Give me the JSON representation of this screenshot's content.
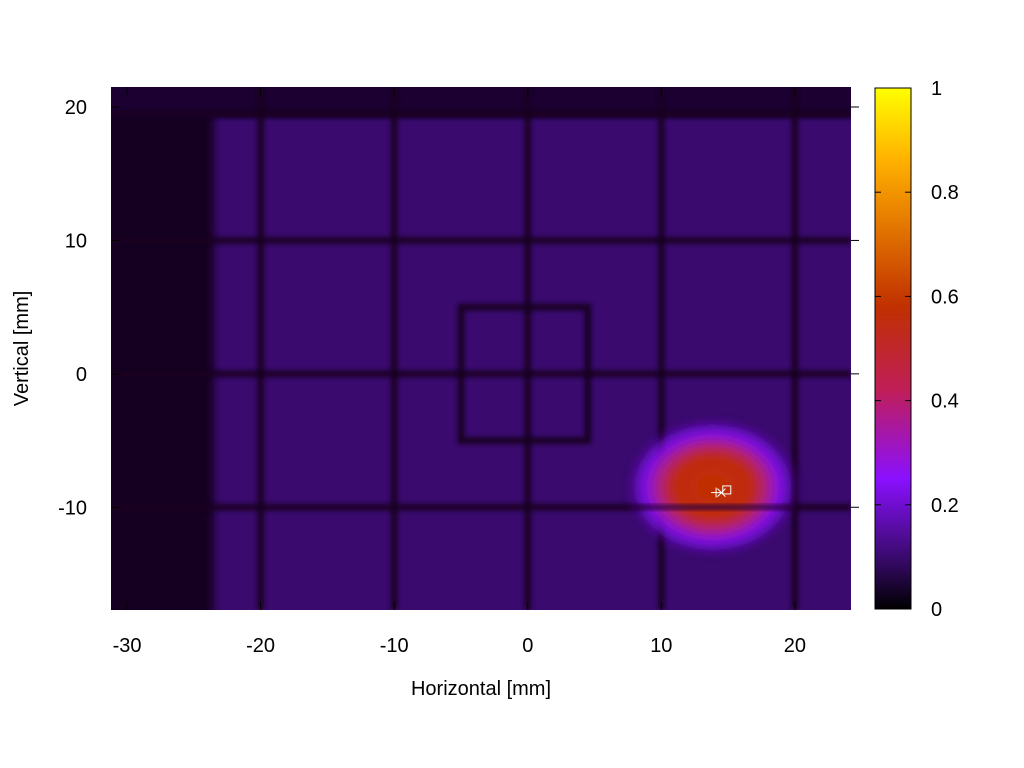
{
  "chart_data": {
    "type": "heatmap",
    "title": "",
    "xlabel": "Horizontal [mm]",
    "ylabel": "Vertical [mm]",
    "xlim": [
      -31.2,
      24.2
    ],
    "ylim": [
      -17.7,
      21.5
    ],
    "x_ticks": [
      -30,
      -20,
      -10,
      0,
      10,
      20
    ],
    "y_ticks": [
      -10,
      0,
      10,
      20
    ],
    "colorbar": {
      "range": [
        0,
        1
      ],
      "ticks": [
        0,
        0.2,
        0.4,
        0.6,
        0.8,
        1
      ],
      "tick_labels": [
        "0",
        "0.2",
        "0.4",
        "0.6",
        "0.8",
        "1"
      ],
      "palette": [
        "#000000",
        "#3a0a6e",
        "#8a10ff",
        "#c01e58",
        "#c03000",
        "#e07000",
        "#ffb000",
        "#ffff00"
      ]
    },
    "background_level": 0.08,
    "grid_lines": {
      "vertical_x": [
        -20,
        -10,
        0,
        10,
        20
      ],
      "horizontal_y": [
        -10,
        0,
        10,
        19.5
      ]
    },
    "inner_square": {
      "x_range": [
        -5,
        4.5
      ],
      "y_range": [
        -5,
        5
      ]
    },
    "dark_left_band_x": [
      -31.2,
      -23.5
    ],
    "hotspot": {
      "center": [
        14.5,
        -8.8
      ],
      "x_range": [
        9.5,
        18.2
      ],
      "y_range": [
        -12,
        -5
      ],
      "peak_level": 0.55
    },
    "markers": [
      {
        "symbol": "plus",
        "x": 14.1,
        "y": -8.9
      },
      {
        "symbol": "cross",
        "x": 14.5,
        "y": -8.9
      },
      {
        "symbol": "square",
        "x": 14.9,
        "y": -8.7
      }
    ],
    "colors": {
      "grid_shadow": "#14001e",
      "marker": "#ffffff"
    }
  }
}
